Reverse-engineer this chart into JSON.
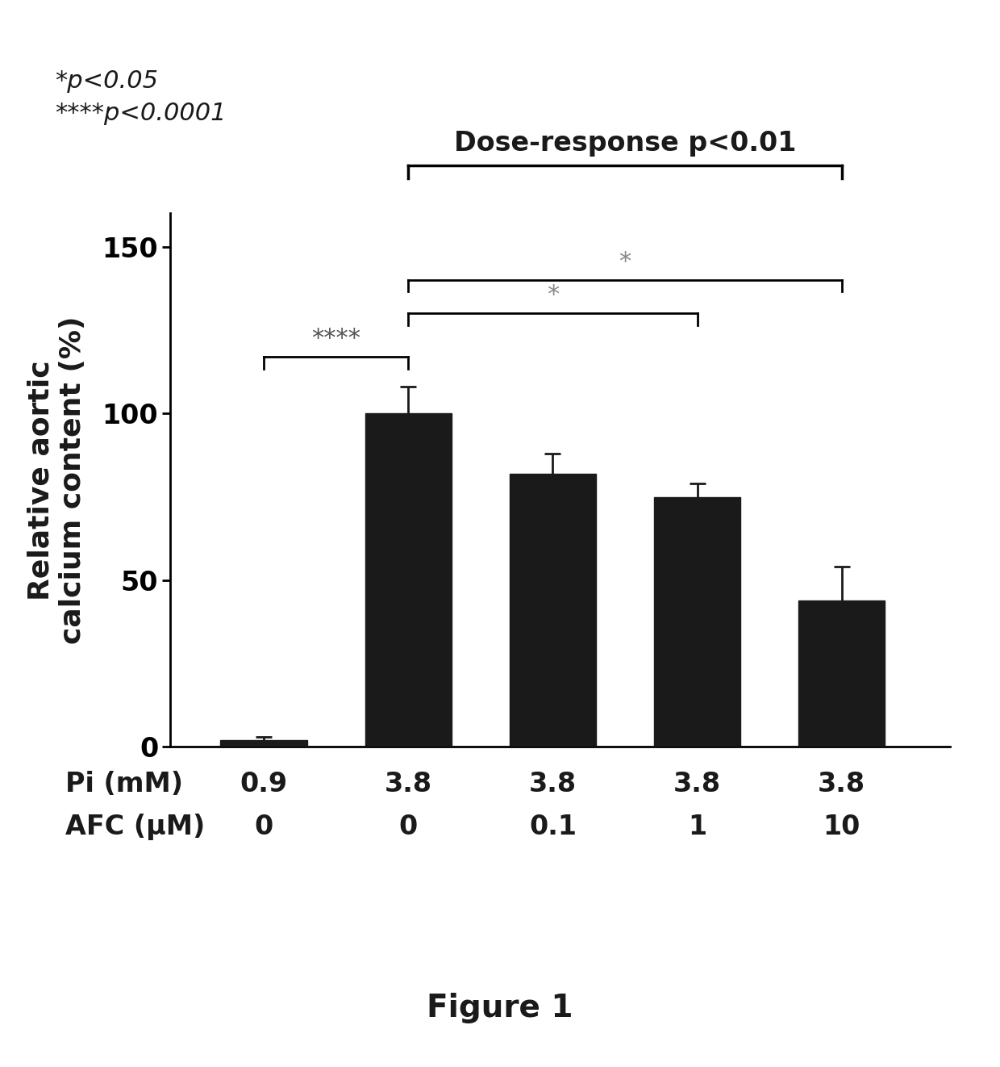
{
  "categories": [
    1,
    2,
    3,
    4,
    5
  ],
  "values": [
    2,
    100,
    82,
    75,
    44
  ],
  "errors": [
    1,
    8,
    6,
    4,
    10
  ],
  "bar_color": "#1a1a1a",
  "bar_width": 0.6,
  "ylabel": "Relative aortic\ncalcium content (%)",
  "ylim": [
    0,
    160
  ],
  "yticks": [
    0,
    50,
    100,
    150
  ],
  "pi_labels": [
    "0.9",
    "3.8",
    "3.8",
    "3.8",
    "3.8"
  ],
  "afc_labels": [
    "0",
    "0",
    "0.1",
    "1",
    "10"
  ],
  "pi_row_label": "Pi (mM)",
  "afc_row_label": "AFC (μM)",
  "legend_star": "*p<0.05",
  "legend_four_star": "****p<0.0001",
  "dose_response_label": "Dose-response p<0.01",
  "figure_label": "Figure 1",
  "background_color": "#ffffff",
  "text_color": "#1a1a1a"
}
